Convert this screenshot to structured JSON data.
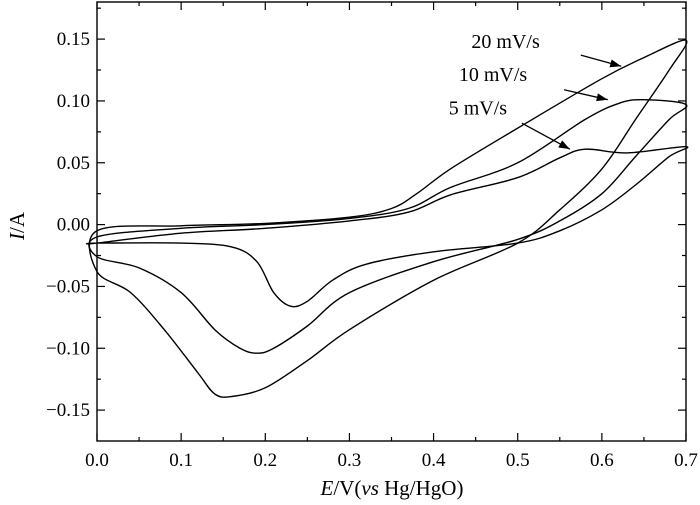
{
  "chart_data": {
    "type": "line",
    "xlabel_italic": "E",
    "xlabel_rest": "/V(",
    "xlabel_vs": "vs",
    "xlabel_tail": " Hg/HgO)",
    "ylabel_italic": "I",
    "ylabel_rest": "/A",
    "xlim": [
      0.0,
      0.7
    ],
    "ylim": [
      -0.175,
      0.18
    ],
    "x_ticks": [
      "0.0",
      "0.1",
      "0.2",
      "0.3",
      "0.4",
      "0.5",
      "0.6",
      "0.7"
    ],
    "y_ticks": [
      "0.15",
      "0.10",
      "0.05",
      "0.00",
      "−0.05",
      "−0.10",
      "−0.15"
    ],
    "y_tick_values": [
      0.15,
      0.1,
      0.05,
      0.0,
      -0.05,
      -0.1,
      -0.15
    ],
    "x_tick_values": [
      0.0,
      0.1,
      0.2,
      0.3,
      0.4,
      0.5,
      0.6,
      0.7
    ],
    "grid": false,
    "series": [
      {
        "name": "20 mV/s",
        "points": [
          [
            0.0,
            -0.005
          ],
          [
            0.1,
            -0.001
          ],
          [
            0.2,
            0.001
          ],
          [
            0.3,
            0.006
          ],
          [
            0.35,
            0.013
          ],
          [
            0.38,
            0.025
          ],
          [
            0.42,
            0.045
          ],
          [
            0.5,
            0.078
          ],
          [
            0.6,
            0.118
          ],
          [
            0.65,
            0.135
          ],
          [
            0.7,
            0.149
          ],
          [
            0.68,
            0.125
          ],
          [
            0.64,
            0.085
          ],
          [
            0.6,
            0.045
          ],
          [
            0.55,
            0.012
          ],
          [
            0.5,
            -0.015
          ],
          [
            0.4,
            -0.045
          ],
          [
            0.3,
            -0.085
          ],
          [
            0.25,
            -0.11
          ],
          [
            0.2,
            -0.132
          ],
          [
            0.16,
            -0.139
          ],
          [
            0.14,
            -0.137
          ],
          [
            0.12,
            -0.12
          ],
          [
            0.08,
            -0.085
          ],
          [
            0.04,
            -0.055
          ],
          [
            0.0,
            -0.038
          ]
        ]
      },
      {
        "name": "10 mV/s",
        "points": [
          [
            0.0,
            -0.01
          ],
          [
            0.1,
            -0.003
          ],
          [
            0.2,
            0.0
          ],
          [
            0.3,
            0.005
          ],
          [
            0.37,
            0.013
          ],
          [
            0.42,
            0.03
          ],
          [
            0.5,
            0.05
          ],
          [
            0.58,
            0.085
          ],
          [
            0.62,
            0.098
          ],
          [
            0.65,
            0.101
          ],
          [
            0.7,
            0.097
          ],
          [
            0.68,
            0.085
          ],
          [
            0.64,
            0.055
          ],
          [
            0.6,
            0.025
          ],
          [
            0.55,
            0.003
          ],
          [
            0.5,
            -0.012
          ],
          [
            0.4,
            -0.03
          ],
          [
            0.3,
            -0.055
          ],
          [
            0.25,
            -0.082
          ],
          [
            0.21,
            -0.1
          ],
          [
            0.19,
            -0.104
          ],
          [
            0.17,
            -0.1
          ],
          [
            0.14,
            -0.085
          ],
          [
            0.1,
            -0.055
          ],
          [
            0.05,
            -0.035
          ],
          [
            0.0,
            -0.026
          ]
        ]
      },
      {
        "name": "5 mV/s",
        "points": [
          [
            0.0,
            -0.015
          ],
          [
            0.1,
            -0.007
          ],
          [
            0.2,
            -0.003
          ],
          [
            0.3,
            0.003
          ],
          [
            0.37,
            0.01
          ],
          [
            0.42,
            0.024
          ],
          [
            0.5,
            0.038
          ],
          [
            0.55,
            0.054
          ],
          [
            0.58,
            0.061
          ],
          [
            0.63,
            0.058
          ],
          [
            0.7,
            0.063
          ],
          [
            0.68,
            0.055
          ],
          [
            0.64,
            0.032
          ],
          [
            0.6,
            0.012
          ],
          [
            0.55,
            -0.005
          ],
          [
            0.5,
            -0.015
          ],
          [
            0.4,
            -0.022
          ],
          [
            0.32,
            -0.032
          ],
          [
            0.28,
            -0.045
          ],
          [
            0.25,
            -0.062
          ],
          [
            0.23,
            -0.066
          ],
          [
            0.21,
            -0.055
          ],
          [
            0.19,
            -0.03
          ],
          [
            0.16,
            -0.018
          ],
          [
            0.1,
            -0.015
          ],
          [
            0.0,
            -0.015
          ]
        ]
      }
    ],
    "annotations": [
      {
        "text": "20 mV/s",
        "label_x": 0.445,
        "label_y": 0.143,
        "arrow_from": [
          0.575,
          0.137
        ],
        "arrow_to": [
          0.623,
          0.128
        ]
      },
      {
        "text": "10 mV/s",
        "label_x": 0.43,
        "label_y": 0.116,
        "arrow_from": [
          0.555,
          0.109
        ],
        "arrow_to": [
          0.607,
          0.101
        ]
      },
      {
        "text": "5 mV/s",
        "label_x": 0.418,
        "label_y": 0.089,
        "arrow_from": [
          0.505,
          0.082
        ],
        "arrow_to": [
          0.562,
          0.061
        ]
      }
    ]
  }
}
